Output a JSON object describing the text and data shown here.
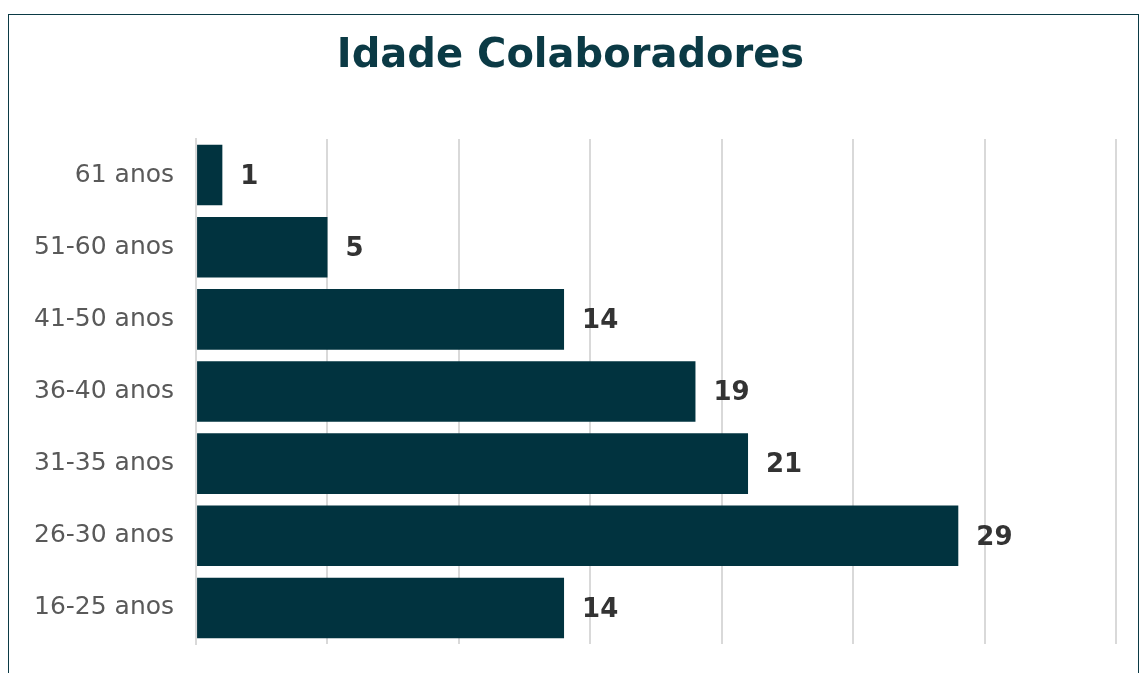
{
  "chart_data": {
    "type": "bar",
    "orientation": "horizontal",
    "title": "Idade Colaboradores",
    "categories": [
      "61 anos",
      "51-60 anos",
      "41-50 anos",
      "36-40 anos",
      "31-35 anos",
      "26-30 anos",
      "16-25 anos"
    ],
    "values": [
      1,
      5,
      14,
      19,
      21,
      29,
      14
    ],
    "color": "#01333f",
    "xlim": [
      0,
      35
    ],
    "xticks": [
      {
        "value": 0,
        "label": null
      },
      {
        "value": 5,
        "label": null
      },
      {
        "value": 10,
        "label": null
      },
      {
        "value": 15,
        "label": null
      },
      {
        "value": 20,
        "label": null
      },
      {
        "value": 25,
        "label": null
      },
      {
        "value": 30,
        "label": null
      },
      {
        "value": 35,
        "label": null
      }
    ],
    "grid": "x",
    "tick_labels": "y",
    "data_labels": true,
    "legend": false
  }
}
